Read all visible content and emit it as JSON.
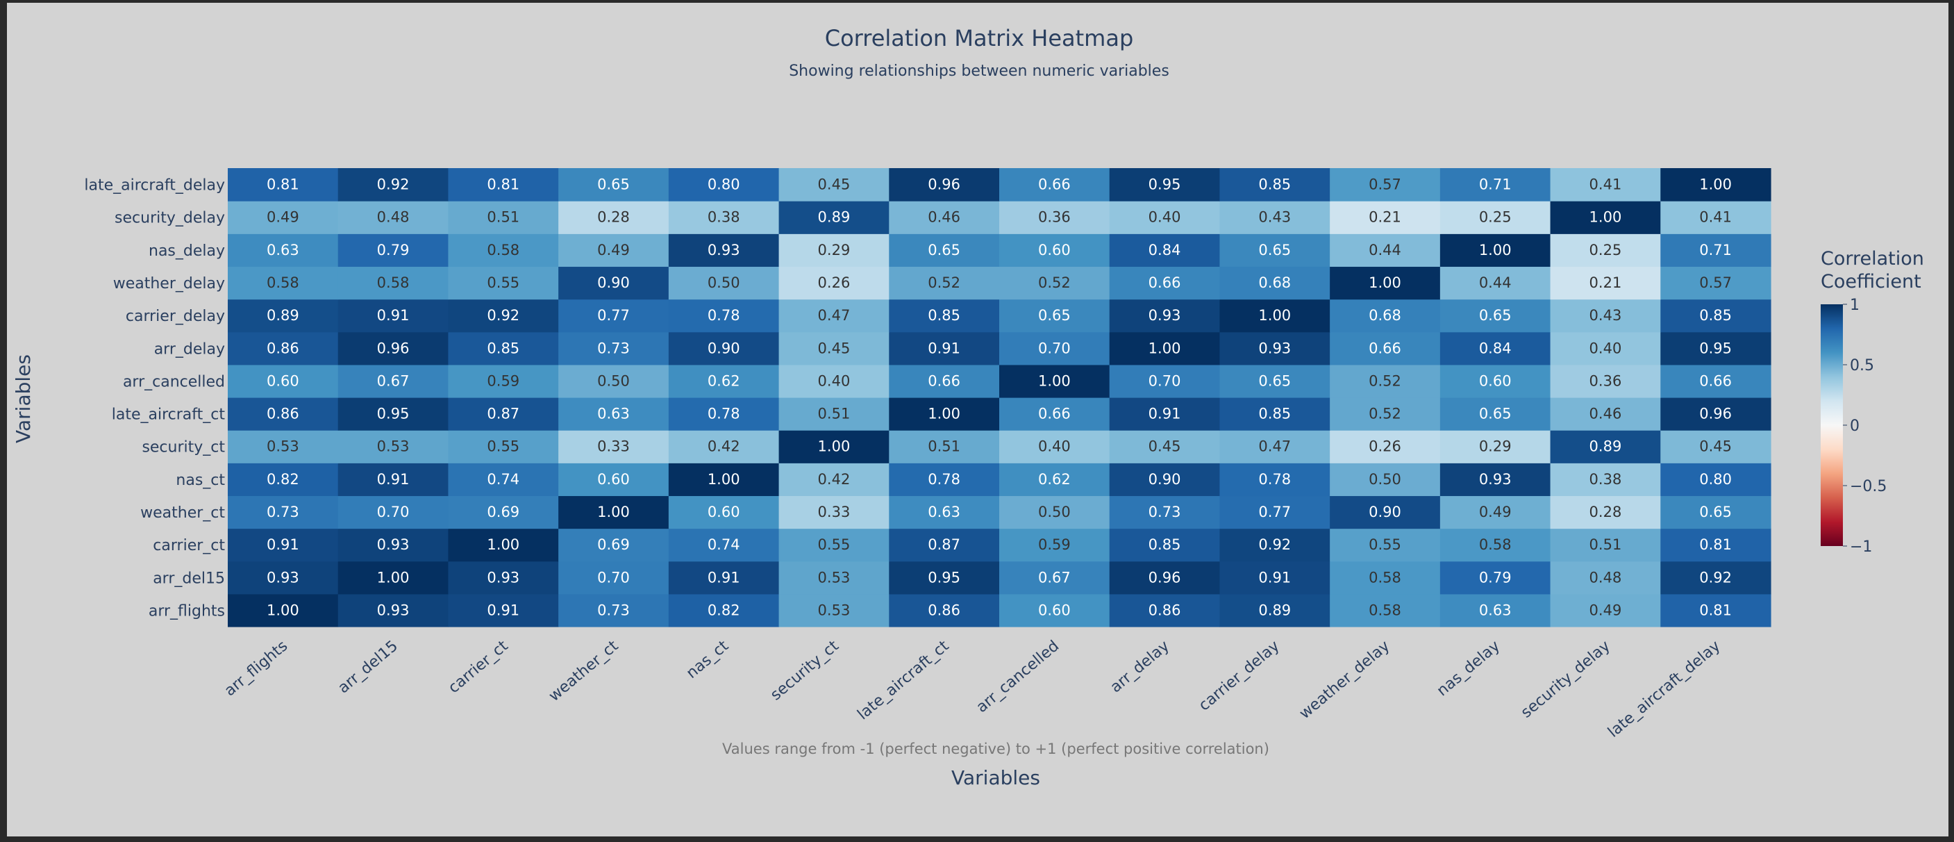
{
  "chart_data": {
    "type": "heatmap",
    "title": "Correlation Matrix Heatmap",
    "subtitle": "Showing relationships between numeric variables",
    "xlabel": "Variables",
    "ylabel": "Variables",
    "annotation": "Values range from -1 (perfect negative) to +1 (perfect positive correlation)",
    "colorbar": {
      "title_lines": [
        "Correlation",
        "Coefficient"
      ],
      "range": [
        -1,
        1
      ],
      "ticks": [
        {
          "value": 1,
          "label": "1"
        },
        {
          "value": 0.5,
          "label": "0.5"
        },
        {
          "value": 0,
          "label": "0"
        },
        {
          "value": -0.5,
          "label": "−0.5"
        },
        {
          "value": -1,
          "label": "−1"
        }
      ]
    },
    "x": [
      "arr_flights",
      "arr_del15",
      "carrier_ct",
      "weather_ct",
      "nas_ct",
      "security_ct",
      "late_aircraft_ct",
      "arr_cancelled",
      "arr_delay",
      "carrier_delay",
      "weather_delay",
      "nas_delay",
      "security_delay",
      "late_aircraft_delay"
    ],
    "y": [
      "arr_flights",
      "arr_del15",
      "carrier_ct",
      "weather_ct",
      "nas_ct",
      "security_ct",
      "late_aircraft_ct",
      "arr_cancelled",
      "arr_delay",
      "carrier_delay",
      "weather_delay",
      "nas_delay",
      "security_delay",
      "late_aircraft_delay"
    ],
    "z": [
      [
        1.0,
        0.93,
        0.91,
        0.73,
        0.82,
        0.53,
        0.86,
        0.6,
        0.86,
        0.89,
        0.58,
        0.63,
        0.49,
        0.81
      ],
      [
        0.93,
        1.0,
        0.93,
        0.7,
        0.91,
        0.53,
        0.95,
        0.67,
        0.96,
        0.91,
        0.58,
        0.79,
        0.48,
        0.92
      ],
      [
        0.91,
        0.93,
        1.0,
        0.69,
        0.74,
        0.55,
        0.87,
        0.59,
        0.85,
        0.92,
        0.55,
        0.58,
        0.51,
        0.81
      ],
      [
        0.73,
        0.7,
        0.69,
        1.0,
        0.6,
        0.33,
        0.63,
        0.5,
        0.73,
        0.77,
        0.9,
        0.49,
        0.28,
        0.65
      ],
      [
        0.82,
        0.91,
        0.74,
        0.6,
        1.0,
        0.42,
        0.78,
        0.62,
        0.9,
        0.78,
        0.5,
        0.93,
        0.38,
        0.8
      ],
      [
        0.53,
        0.53,
        0.55,
        0.33,
        0.42,
        1.0,
        0.51,
        0.4,
        0.45,
        0.47,
        0.26,
        0.29,
        0.89,
        0.45
      ],
      [
        0.86,
        0.95,
        0.87,
        0.63,
        0.78,
        0.51,
        1.0,
        0.66,
        0.91,
        0.85,
        0.52,
        0.65,
        0.46,
        0.96
      ],
      [
        0.6,
        0.67,
        0.59,
        0.5,
        0.62,
        0.4,
        0.66,
        1.0,
        0.7,
        0.65,
        0.52,
        0.6,
        0.36,
        0.66
      ],
      [
        0.86,
        0.96,
        0.85,
        0.73,
        0.9,
        0.45,
        0.91,
        0.7,
        1.0,
        0.93,
        0.66,
        0.84,
        0.4,
        0.95
      ],
      [
        0.89,
        0.91,
        0.92,
        0.77,
        0.78,
        0.47,
        0.85,
        0.65,
        0.93,
        1.0,
        0.68,
        0.65,
        0.43,
        0.85
      ],
      [
        0.58,
        0.58,
        0.55,
        0.9,
        0.5,
        0.26,
        0.52,
        0.52,
        0.66,
        0.68,
        1.0,
        0.44,
        0.21,
        0.57
      ],
      [
        0.63,
        0.79,
        0.58,
        0.49,
        0.93,
        0.29,
        0.65,
        0.6,
        0.84,
        0.65,
        0.44,
        1.0,
        0.25,
        0.71
      ],
      [
        0.49,
        0.48,
        0.51,
        0.28,
        0.38,
        0.89,
        0.46,
        0.36,
        0.4,
        0.43,
        0.21,
        0.25,
        1.0,
        0.41
      ],
      [
        0.81,
        0.92,
        0.81,
        0.65,
        0.8,
        0.45,
        0.96,
        0.66,
        0.95,
        0.85,
        0.57,
        0.71,
        0.41,
        1.0
      ]
    ],
    "colorscale": "RdBu",
    "colors": {
      "background": "#d3d3d3",
      "text_dark": "#2a3f5f",
      "cell_text_light": "#ffffff",
      "cell_text_dark": "#333333"
    }
  }
}
